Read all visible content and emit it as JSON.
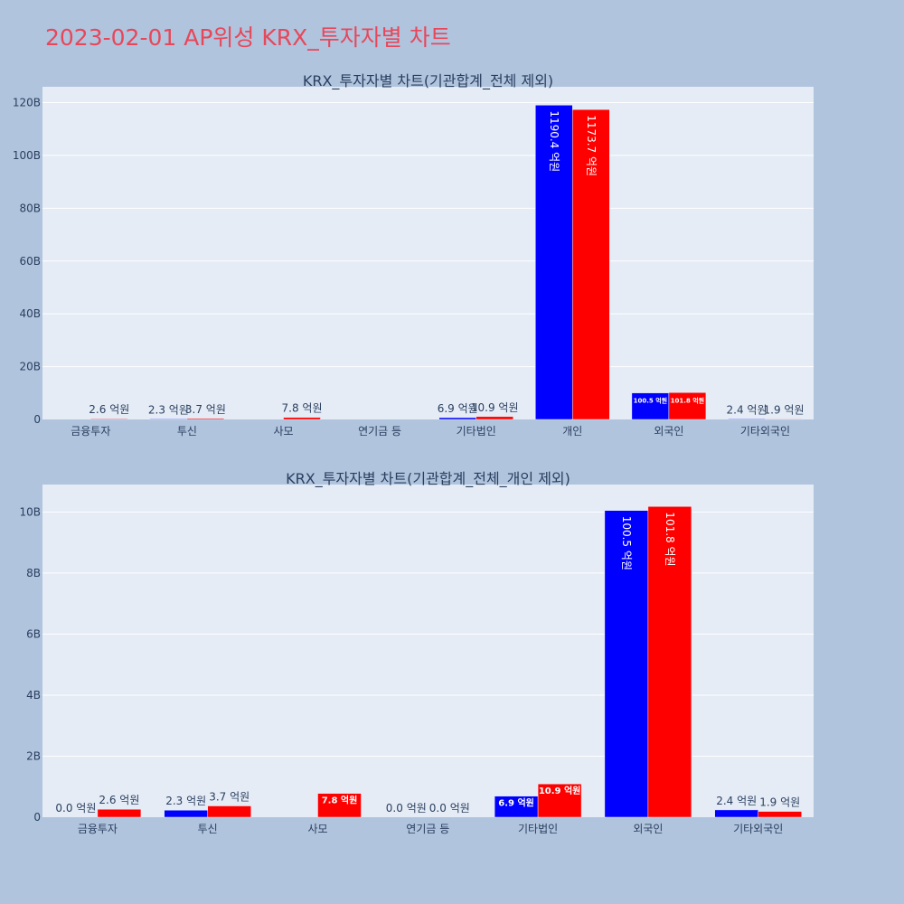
{
  "page": {
    "title": "2023-02-01 AP위성 KRX_투자자별 차트"
  },
  "colors": {
    "background": "#b0c4de",
    "plot_bg": "#e5ecf6",
    "title": "#e8475a",
    "series_a": "#0000ff",
    "series_b": "#ff0000"
  },
  "chart_data": [
    {
      "type": "bar",
      "title": "KRX_투자자별 차트(기관합계_전체 제외)",
      "categories": [
        "금융투자",
        "투신",
        "사모",
        "연기금 등",
        "기타법인",
        "개인",
        "외국인",
        "기타외국인"
      ],
      "series": [
        {
          "color": "#0000ff",
          "values": [
            0,
            0.23,
            0,
            0,
            0.69,
            119.04,
            10.05,
            0.24
          ],
          "labels": [
            "",
            "2.3 억원",
            "",
            "",
            "6.9 억원",
            "1190.4 억원",
            "100.5 억원",
            "2.4 억원"
          ]
        },
        {
          "color": "#ff0000",
          "values": [
            0.26,
            0.37,
            0.78,
            0,
            1.09,
            117.37,
            10.18,
            0.19
          ],
          "labels": [
            "2.6 억원",
            "3.7 억원",
            "7.8 억원",
            "",
            "10.9 억원",
            "1173.7 억원",
            "101.8 억원",
            "1.9 억원"
          ]
        }
      ],
      "ylim": [
        0,
        126
      ],
      "yticks": [
        0,
        20,
        40,
        60,
        80,
        100,
        120
      ],
      "ytick_labels": [
        "0",
        "20B",
        "40B",
        "60B",
        "80B",
        "100B",
        "120B"
      ],
      "grid": true
    },
    {
      "type": "bar",
      "title": "KRX_투자자별 차트(기관합계_전체_개인 제외)",
      "categories": [
        "금융투자",
        "투신",
        "사모",
        "연기금 등",
        "기타법인",
        "외국인",
        "기타외국인"
      ],
      "series": [
        {
          "color": "#0000ff",
          "values": [
            0,
            0.23,
            0,
            0,
            0.69,
            10.05,
            0.24
          ],
          "labels": [
            "0.0 억원",
            "2.3 억원",
            "",
            "0.0 억원",
            "6.9 억원",
            "100.5 억원",
            "2.4 억원"
          ]
        },
        {
          "color": "#ff0000",
          "values": [
            0.26,
            0.37,
            0.78,
            0,
            1.09,
            10.18,
            0.19
          ],
          "labels": [
            "2.6 억원",
            "3.7 억원",
            "7.8 억원",
            "0.0 억원",
            "10.9 억원",
            "101.8 억원",
            "1.9 억원"
          ]
        }
      ],
      "ylim": [
        0,
        10.9
      ],
      "yticks": [
        0,
        2,
        4,
        6,
        8,
        10
      ],
      "ytick_labels": [
        "0",
        "2B",
        "4B",
        "6B",
        "8B",
        "10B"
      ],
      "grid": true
    }
  ]
}
